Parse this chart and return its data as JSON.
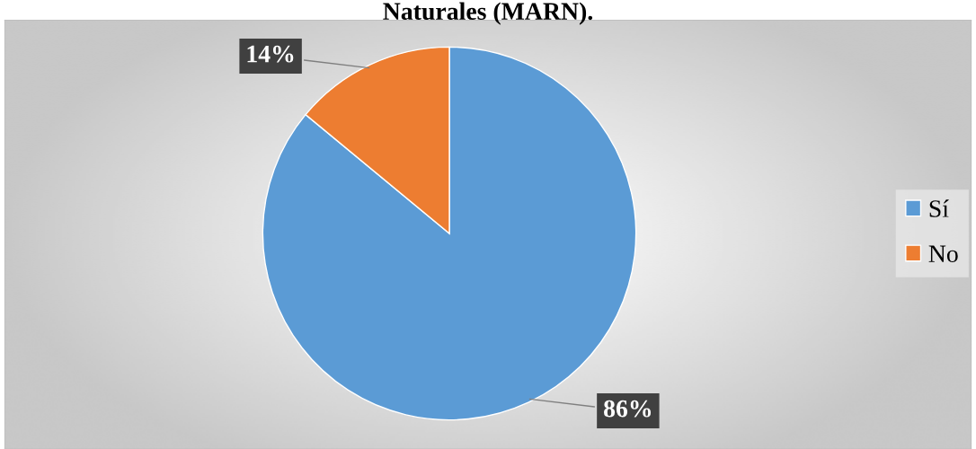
{
  "chart_data": {
    "type": "pie",
    "title": "Naturales (MARN).",
    "categories": [
      "Sí",
      "No"
    ],
    "values": [
      86,
      14
    ],
    "colors": [
      "#5b9bd5",
      "#ed7d31"
    ],
    "value_labels": [
      "86%",
      "14%"
    ],
    "legend": "right"
  }
}
